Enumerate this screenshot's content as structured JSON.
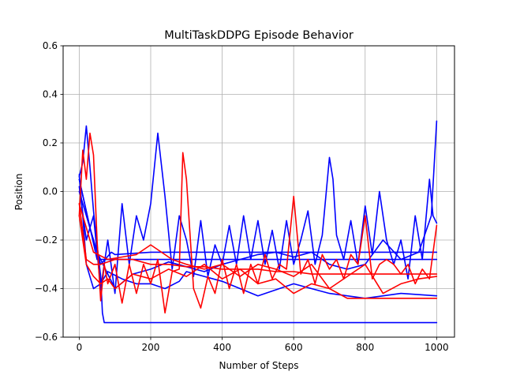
{
  "chart_data": {
    "type": "line",
    "title": "MultiTaskDDPG Episode Behavior",
    "xlabel": "Number of Steps",
    "ylabel": "Position",
    "xlim": [
      -45,
      1050
    ],
    "ylim": [
      -0.6,
      0.6
    ],
    "xticks": [
      0,
      200,
      400,
      600,
      800,
      1000
    ],
    "yticks": [
      -0.6,
      -0.4,
      -0.2,
      0.0,
      0.2,
      0.4,
      0.6
    ],
    "xtick_labels": [
      "0",
      "200",
      "400",
      "600",
      "800",
      "1000"
    ],
    "ytick_labels": [
      "−0.6",
      "−0.4",
      "−0.2",
      "0.0",
      "0.2",
      "0.4",
      "0.6"
    ],
    "grid": true,
    "series": [
      {
        "color": "#0000ff",
        "x": [
          0,
          10,
          20,
          30,
          40,
          50,
          60,
          65,
          70,
          100,
          200,
          400,
          600,
          800,
          1000
        ],
        "y": [
          0.06,
          0.12,
          0.27,
          0.1,
          -0.08,
          -0.22,
          -0.35,
          -0.5,
          -0.54,
          -0.54,
          -0.54,
          -0.54,
          -0.54,
          -0.54,
          -0.54
        ]
      },
      {
        "color": "#0000ff",
        "x": [
          0,
          10,
          20,
          40,
          60,
          80,
          120,
          160,
          200,
          240,
          280,
          300,
          400,
          500,
          600,
          700,
          800,
          900,
          1000
        ],
        "y": [
          0.07,
          -0.1,
          -0.3,
          -0.4,
          -0.38,
          -0.33,
          -0.36,
          -0.38,
          -0.38,
          -0.4,
          -0.37,
          -0.33,
          -0.37,
          -0.43,
          -0.38,
          -0.42,
          -0.44,
          -0.42,
          -0.43
        ]
      },
      {
        "color": "#0000ff",
        "x": [
          0,
          20,
          40,
          60,
          80,
          100,
          120,
          140,
          160,
          180,
          200,
          220,
          240,
          260,
          280,
          300,
          320,
          340,
          360,
          380,
          400,
          420,
          440,
          460,
          480,
          500,
          520,
          540,
          560,
          580,
          600,
          620,
          640,
          660,
          680,
          700,
          710,
          720,
          740,
          760,
          780,
          800,
          820,
          840,
          860,
          880,
          900,
          920,
          940,
          960,
          980,
          990,
          1000
        ],
        "y": [
          0.02,
          -0.2,
          -0.1,
          -0.4,
          -0.2,
          -0.42,
          -0.05,
          -0.3,
          -0.1,
          -0.2,
          -0.05,
          0.24,
          -0.02,
          -0.32,
          -0.1,
          -0.2,
          -0.35,
          -0.12,
          -0.35,
          -0.22,
          -0.3,
          -0.14,
          -0.3,
          -0.1,
          -0.28,
          -0.12,
          -0.3,
          -0.16,
          -0.32,
          -0.12,
          -0.3,
          -0.2,
          -0.08,
          -0.3,
          -0.18,
          0.14,
          0.05,
          -0.18,
          -0.28,
          -0.12,
          -0.3,
          -0.06,
          -0.26,
          0.0,
          -0.2,
          -0.3,
          -0.2,
          -0.36,
          -0.1,
          -0.28,
          0.05,
          -0.1,
          -0.13
        ]
      },
      {
        "color": "#0000ff",
        "x": [
          0,
          50,
          100,
          200,
          300,
          400,
          500,
          600,
          700,
          800,
          900,
          1000
        ],
        "y": [
          0.05,
          -0.28,
          -0.28,
          -0.28,
          -0.28,
          -0.28,
          -0.28,
          -0.28,
          -0.28,
          -0.28,
          -0.28,
          -0.28
        ]
      },
      {
        "color": "#0000ff",
        "x": [
          0,
          30,
          60,
          90,
          100,
          200,
          300,
          400,
          500,
          600,
          700,
          800,
          900,
          1000
        ],
        "y": [
          0.05,
          -0.15,
          -0.3,
          -0.25,
          -0.26,
          -0.25,
          -0.25,
          -0.25,
          -0.25,
          -0.25,
          -0.25,
          -0.25,
          -0.25,
          -0.25
        ]
      },
      {
        "color": "#0000ff",
        "x": [
          0,
          50,
          100,
          150,
          200,
          250,
          300,
          350,
          400,
          450,
          500,
          550,
          600,
          650,
          700,
          750,
          800,
          850,
          900,
          950,
          985,
          1000
        ],
        "y": [
          0.0,
          -0.25,
          -0.4,
          -0.34,
          -0.32,
          -0.29,
          -0.31,
          -0.33,
          -0.3,
          -0.28,
          -0.26,
          -0.25,
          -0.27,
          -0.25,
          -0.3,
          -0.32,
          -0.3,
          -0.2,
          -0.28,
          -0.25,
          -0.1,
          0.29
        ]
      },
      {
        "color": "#ff0000",
        "x": [
          0,
          10,
          20,
          30,
          40,
          50,
          60,
          70,
          80,
          100,
          120,
          140,
          160,
          180,
          200,
          220,
          240,
          260,
          280,
          290,
          300,
          320,
          340,
          360,
          380,
          400,
          420,
          440,
          460,
          480,
          500,
          520,
          540,
          560,
          580,
          600,
          620,
          640,
          660,
          680,
          700,
          720,
          740,
          760,
          780,
          800,
          820,
          840,
          860,
          880,
          900,
          920,
          940,
          960,
          980,
          1000
        ],
        "y": [
          -0.1,
          0.17,
          0.05,
          0.24,
          0.15,
          -0.2,
          -0.45,
          -0.3,
          -0.38,
          -0.3,
          -0.46,
          -0.3,
          -0.42,
          -0.3,
          -0.38,
          -0.28,
          -0.5,
          -0.33,
          -0.32,
          0.16,
          0.05,
          -0.4,
          -0.48,
          -0.35,
          -0.42,
          -0.28,
          -0.4,
          -0.3,
          -0.42,
          -0.3,
          -0.38,
          -0.26,
          -0.36,
          -0.3,
          -0.32,
          -0.02,
          -0.34,
          -0.28,
          -0.38,
          -0.26,
          -0.32,
          -0.28,
          -0.36,
          -0.26,
          -0.3,
          -0.1,
          -0.36,
          -0.3,
          -0.28,
          -0.3,
          -0.34,
          -0.3,
          -0.38,
          -0.32,
          -0.36,
          -0.14
        ]
      },
      {
        "color": "#ff0000",
        "x": [
          0,
          20,
          40,
          60,
          80,
          100,
          150,
          200,
          250,
          300,
          350,
          400,
          450,
          500,
          550,
          600,
          650,
          700,
          750,
          800,
          850,
          900,
          950,
          1000
        ],
        "y": [
          -0.1,
          -0.3,
          -0.35,
          -0.38,
          -0.36,
          -0.4,
          -0.34,
          -0.36,
          -0.32,
          -0.35,
          -0.3,
          -0.36,
          -0.32,
          -0.38,
          -0.36,
          -0.42,
          -0.38,
          -0.4,
          -0.44,
          -0.44,
          -0.44,
          -0.44,
          -0.44,
          -0.44
        ]
      },
      {
        "color": "#ff0000",
        "x": [
          0,
          20,
          40,
          60,
          100,
          150,
          200,
          250,
          300,
          350,
          400,
          450,
          500,
          550,
          600,
          650,
          700,
          750,
          800,
          850,
          900,
          950,
          1000
        ],
        "y": [
          -0.05,
          -0.28,
          -0.3,
          -0.3,
          -0.28,
          -0.28,
          -0.3,
          -0.3,
          -0.31,
          -0.31,
          -0.32,
          -0.32,
          -0.32,
          -0.33,
          -0.33,
          -0.34,
          -0.34,
          -0.34,
          -0.34,
          -0.34,
          -0.34,
          -0.34,
          -0.34
        ]
      },
      {
        "color": "#ff0000",
        "x": [
          0,
          40,
          80,
          120,
          160,
          200,
          260,
          300,
          350,
          400,
          450,
          500,
          550,
          600,
          650,
          700,
          750,
          800,
          850,
          900,
          950,
          1000
        ],
        "y": [
          -0.05,
          -0.25,
          -0.28,
          -0.27,
          -0.26,
          -0.22,
          -0.28,
          -0.3,
          -0.32,
          -0.3,
          -0.35,
          -0.3,
          -0.32,
          -0.35,
          -0.3,
          -0.4,
          -0.35,
          -0.3,
          -0.42,
          -0.38,
          -0.36,
          -0.35
        ]
      }
    ]
  }
}
